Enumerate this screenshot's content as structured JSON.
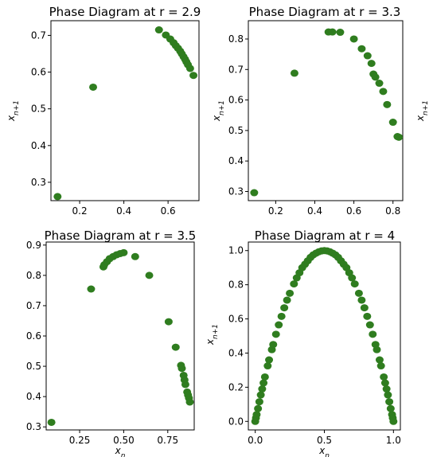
{
  "chart_data": [
    {
      "type": "scatter",
      "title": "Phase Diagram at r = 2.9",
      "xlabel": "",
      "ylabel": "x_{n+1}",
      "xlim": [
        0.07,
        0.74
      ],
      "ylim": [
        0.25,
        0.74
      ],
      "xticks": [
        0.2,
        0.4,
        0.6
      ],
      "yticks": [
        0.3,
        0.4,
        0.5,
        0.6,
        0.7
      ],
      "xtick_labels": [
        "0.2",
        "0.4",
        "0.6"
      ],
      "ytick_labels": [
        "0.3",
        "0.4",
        "0.5",
        "0.6",
        "0.7"
      ],
      "color": "#2f7d1f",
      "points": [
        [
          0.1,
          0.261
        ],
        [
          0.261,
          0.559
        ],
        [
          0.559,
          0.715
        ],
        [
          0.59,
          0.701
        ],
        [
          0.61,
          0.69
        ],
        [
          0.625,
          0.68
        ],
        [
          0.635,
          0.672
        ],
        [
          0.645,
          0.665
        ],
        [
          0.655,
          0.657
        ],
        [
          0.662,
          0.65
        ],
        [
          0.67,
          0.642
        ],
        [
          0.677,
          0.635
        ],
        [
          0.683,
          0.628
        ],
        [
          0.69,
          0.62
        ],
        [
          0.7,
          0.61
        ],
        [
          0.715,
          0.591
        ]
      ]
    },
    {
      "type": "scatter",
      "title": "Phase Diagram at r = 3.3",
      "xlabel": "",
      "ylabel": "x_{n+1}",
      "xlim": [
        0.06,
        0.85
      ],
      "ylim": [
        0.27,
        0.86
      ],
      "xticks": [
        0.2,
        0.4,
        0.6,
        0.8
      ],
      "yticks": [
        0.3,
        0.4,
        0.5,
        0.6,
        0.7,
        0.8
      ],
      "xtick_labels": [
        "0.2",
        "0.4",
        "0.6",
        "0.8"
      ],
      "ytick_labels": [
        "0.3",
        "0.4",
        "0.5",
        "0.6",
        "0.7",
        "0.8"
      ],
      "color": "#2f7d1f",
      "points": [
        [
          0.09,
          0.296
        ],
        [
          0.296,
          0.688
        ],
        [
          0.47,
          0.823
        ],
        [
          0.49,
          0.823
        ],
        [
          0.53,
          0.822
        ],
        [
          0.6,
          0.8
        ],
        [
          0.64,
          0.768
        ],
        [
          0.67,
          0.745
        ],
        [
          0.69,
          0.72
        ],
        [
          0.7,
          0.685
        ],
        [
          0.71,
          0.675
        ],
        [
          0.73,
          0.655
        ],
        [
          0.75,
          0.628
        ],
        [
          0.77,
          0.585
        ],
        [
          0.8,
          0.527
        ],
        [
          0.823,
          0.48
        ],
        [
          0.83,
          0.478
        ]
      ]
    },
    {
      "type": "scatter",
      "title": "Phase Diagram at r = 3.5",
      "xlabel": "x_n",
      "ylabel": "",
      "xlim": [
        0.06,
        0.9
      ],
      "ylim": [
        0.29,
        0.91
      ],
      "xticks": [
        0.25,
        0.5,
        0.75
      ],
      "yticks": [
        0.3,
        0.4,
        0.5,
        0.6,
        0.7,
        0.8,
        0.9
      ],
      "xtick_labels": [
        "0.25",
        "0.50",
        "0.75"
      ],
      "ytick_labels": [
        "0.3",
        "0.4",
        "0.5",
        "0.6",
        "0.7",
        "0.8",
        "0.9"
      ],
      "color": "#2f7d1f",
      "points": [
        [
          0.09,
          0.315
        ],
        [
          0.315,
          0.755
        ],
        [
          0.385,
          0.828
        ],
        [
          0.39,
          0.835
        ],
        [
          0.405,
          0.845
        ],
        [
          0.42,
          0.855
        ],
        [
          0.44,
          0.862
        ],
        [
          0.46,
          0.868
        ],
        [
          0.48,
          0.872
        ],
        [
          0.5,
          0.875
        ],
        [
          0.565,
          0.862
        ],
        [
          0.645,
          0.8
        ],
        [
          0.755,
          0.647
        ],
        [
          0.795,
          0.563
        ],
        [
          0.825,
          0.503
        ],
        [
          0.83,
          0.493
        ],
        [
          0.84,
          0.47
        ],
        [
          0.845,
          0.455
        ],
        [
          0.85,
          0.44
        ],
        [
          0.86,
          0.415
        ],
        [
          0.865,
          0.405
        ],
        [
          0.87,
          0.395
        ],
        [
          0.875,
          0.382
        ]
      ]
    },
    {
      "type": "scatter",
      "title": "Phase Diagram at r = 4",
      "xlabel": "x_n",
      "ylabel": "x_{n+1}",
      "xlim": [
        -0.05,
        1.05
      ],
      "ylim": [
        -0.05,
        1.05
      ],
      "xticks": [
        0.0,
        0.5,
        1.0
      ],
      "yticks": [
        0.0,
        0.2,
        0.4,
        0.6,
        0.8,
        1.0
      ],
      "xtick_labels": [
        "0.0",
        "0.5",
        "1.0"
      ],
      "ytick_labels": [
        "0.0",
        "0.2",
        "0.4",
        "0.6",
        "0.8",
        "1.0"
      ],
      "color": "#2f7d1f",
      "points": [
        [
          0.0,
          0.0
        ],
        [
          0.005,
          0.02
        ],
        [
          0.01,
          0.04
        ],
        [
          0.02,
          0.075
        ],
        [
          0.03,
          0.115
        ],
        [
          0.04,
          0.155
        ],
        [
          0.05,
          0.19
        ],
        [
          0.06,
          0.225
        ],
        [
          0.07,
          0.26
        ],
        [
          0.09,
          0.325
        ],
        [
          0.1,
          0.36
        ],
        [
          0.12,
          0.42
        ],
        [
          0.13,
          0.45
        ],
        [
          0.15,
          0.51
        ],
        [
          0.17,
          0.565
        ],
        [
          0.19,
          0.615
        ],
        [
          0.21,
          0.665
        ],
        [
          0.23,
          0.71
        ],
        [
          0.25,
          0.75
        ],
        [
          0.28,
          0.805
        ],
        [
          0.3,
          0.84
        ],
        [
          0.32,
          0.87
        ],
        [
          0.34,
          0.9
        ],
        [
          0.36,
          0.92
        ],
        [
          0.38,
          0.94
        ],
        [
          0.4,
          0.96
        ],
        [
          0.42,
          0.975
        ],
        [
          0.44,
          0.985
        ],
        [
          0.46,
          0.993
        ],
        [
          0.48,
          0.998
        ],
        [
          0.5,
          1.0
        ],
        [
          0.52,
          0.998
        ],
        [
          0.54,
          0.993
        ],
        [
          0.56,
          0.985
        ],
        [
          0.58,
          0.975
        ],
        [
          0.6,
          0.96
        ],
        [
          0.62,
          0.94
        ],
        [
          0.64,
          0.92
        ],
        [
          0.66,
          0.9
        ],
        [
          0.68,
          0.87
        ],
        [
          0.7,
          0.84
        ],
        [
          0.72,
          0.805
        ],
        [
          0.75,
          0.75
        ],
        [
          0.77,
          0.71
        ],
        [
          0.79,
          0.665
        ],
        [
          0.81,
          0.615
        ],
        [
          0.83,
          0.565
        ],
        [
          0.85,
          0.51
        ],
        [
          0.87,
          0.45
        ],
        [
          0.88,
          0.42
        ],
        [
          0.9,
          0.36
        ],
        [
          0.91,
          0.325
        ],
        [
          0.93,
          0.26
        ],
        [
          0.94,
          0.225
        ],
        [
          0.95,
          0.19
        ],
        [
          0.96,
          0.155
        ],
        [
          0.97,
          0.115
        ],
        [
          0.98,
          0.075
        ],
        [
          0.99,
          0.04
        ],
        [
          0.995,
          0.02
        ],
        [
          1.0,
          0.0
        ]
      ]
    }
  ],
  "extra_labels": {
    "partial_top_right_ylabel": "x_{n+1}"
  }
}
